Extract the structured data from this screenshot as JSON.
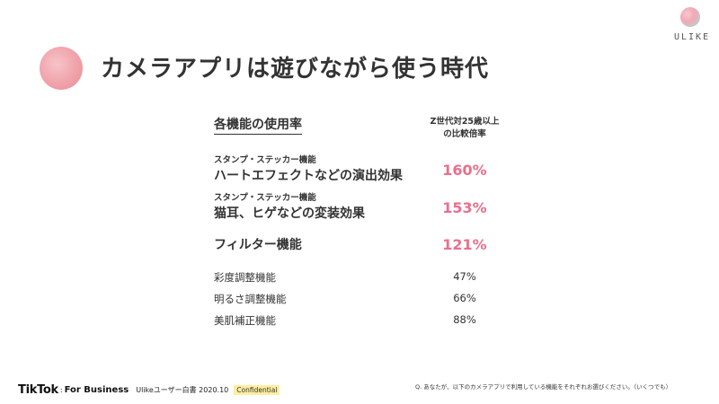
{
  "brand": {
    "wordmark": "ULIKE"
  },
  "title": "カメラアプリは遊びながら使う時代",
  "table": {
    "header_left": "各機能の使用率",
    "header_right_line1": "Z世代対25歳以上",
    "header_right_line2": "の比較倍率",
    "rows": [
      {
        "category": "スタンプ・ステッカー機能",
        "label": "ハートエフェクトなどの演出効果",
        "value": "160%"
      },
      {
        "category": "スタンプ・ステッカー機能",
        "label": "猫耳、ヒゲなどの変装効果",
        "value": "153%"
      },
      {
        "label": "フィルター機能",
        "value": "121%"
      },
      {
        "label": "彩度調整機能",
        "value": "47%"
      },
      {
        "label": "明るさ調整機能",
        "value": "66%"
      },
      {
        "label": "美肌補正機能",
        "value": "88%"
      }
    ]
  },
  "footer": {
    "logo": "TikTok",
    "separator": ":",
    "for_business": "For Business",
    "doc": "Ulikeユーザー白書 2020.10",
    "badge": "Confidential",
    "note": "Q. あなたが、以下のカメラアプリで利用している機能をそれぞれお選びください。（いくつでも）"
  },
  "colors": {
    "accent_pink": "#ea6f8c",
    "badge_yellow": "#fdeea1",
    "text": "#333333"
  }
}
